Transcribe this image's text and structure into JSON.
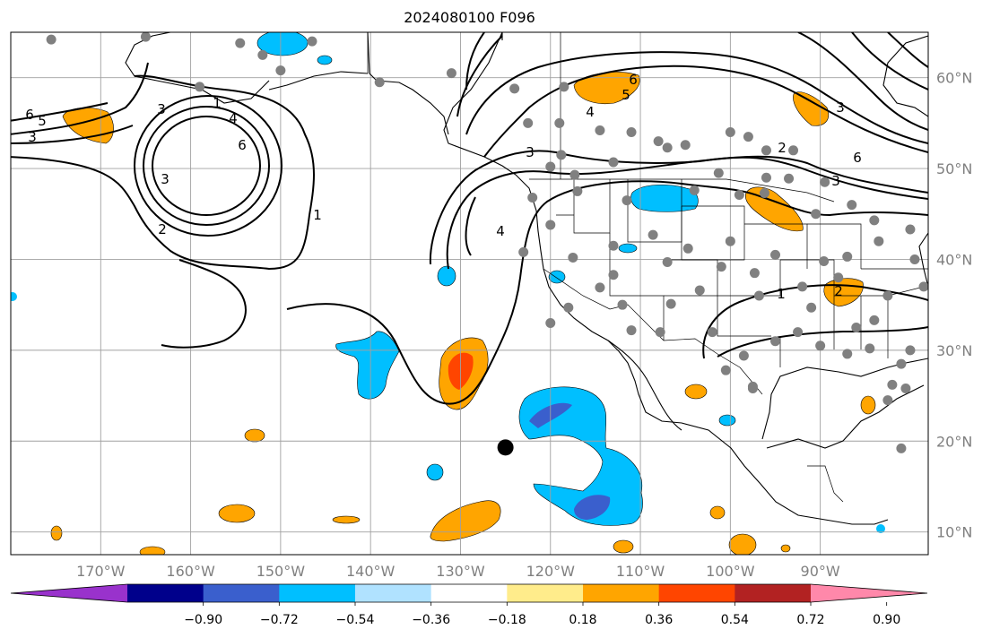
{
  "title": "2024080100 F096",
  "map": {
    "projection": "PlateCarree",
    "lon_range": [
      -180,
      -78
    ],
    "lat_range": [
      7.5,
      65
    ],
    "gridline_color": "#a0a0a0",
    "coastline_color": "#000000",
    "x_ticks": [
      "170°W",
      "160°W",
      "150°W",
      "140°W",
      "130°W",
      "120°W",
      "110°W",
      "100°W",
      "90°W"
    ],
    "y_ticks": [
      "60°N",
      "50°N",
      "40°N",
      "30°N",
      "20°N",
      "10°N"
    ],
    "station_marker_color": "#808080",
    "storm_center": {
      "lon": -125,
      "lat": 19.3,
      "color": "#000000"
    },
    "contour_labels": [
      "6",
      "5",
      "3",
      "3",
      "4",
      "6",
      "3",
      "2",
      "1",
      "6",
      "5",
      "4",
      "3",
      "4",
      "1",
      "2",
      "6",
      "3",
      "3",
      "1",
      "2"
    ]
  },
  "colorbar": {
    "levels": [
      -0.9,
      -0.72,
      -0.54,
      -0.36,
      -0.18,
      0.18,
      0.36,
      0.54,
      0.72,
      0.9
    ],
    "tick_labels": [
      "−0.90",
      "−0.72",
      "−0.54",
      "−0.36",
      "−0.18",
      "0.18",
      "0.36",
      "0.54",
      "0.72",
      "0.90"
    ],
    "colors": [
      "#9932cc",
      "#00008b",
      "#3a5fcd",
      "#00bfff",
      "#b0e2ff",
      "#ffffff",
      "#ffec8b",
      "#ffa500",
      "#ff4500",
      "#b22222",
      "#ff88aa"
    ]
  }
}
